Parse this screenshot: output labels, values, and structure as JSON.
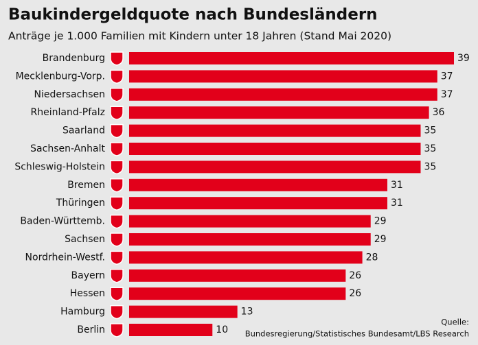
{
  "chart_data": {
    "type": "bar",
    "orientation": "horizontal",
    "title": "Baukindergeldquote nach Bundesländern",
    "subtitle": "Anträge je 1.000 Familien mit Kindern unter 18 Jahren (Stand Mai 2020)",
    "categories": [
      "Brandenburg",
      "Mecklenburg-Vorp.",
      "Niedersachsen",
      "Rheinland-Pfalz",
      "Saarland",
      "Sachsen-Anhalt",
      "Schleswig-Holstein",
      "Bremen",
      "Thüringen",
      "Baden-Württemb.",
      "Sachsen",
      "Nordrhein-Westf.",
      "Bayern",
      "Hessen",
      "Hamburg",
      "Berlin"
    ],
    "values": [
      39,
      37,
      37,
      36,
      35,
      35,
      35,
      31,
      31,
      29,
      29,
      28,
      26,
      26,
      13,
      10
    ],
    "color": "#e2001a",
    "source": [
      "Quelle:",
      "Bundesregierung/Statistisches Bundesamt/LBS Research"
    ]
  }
}
